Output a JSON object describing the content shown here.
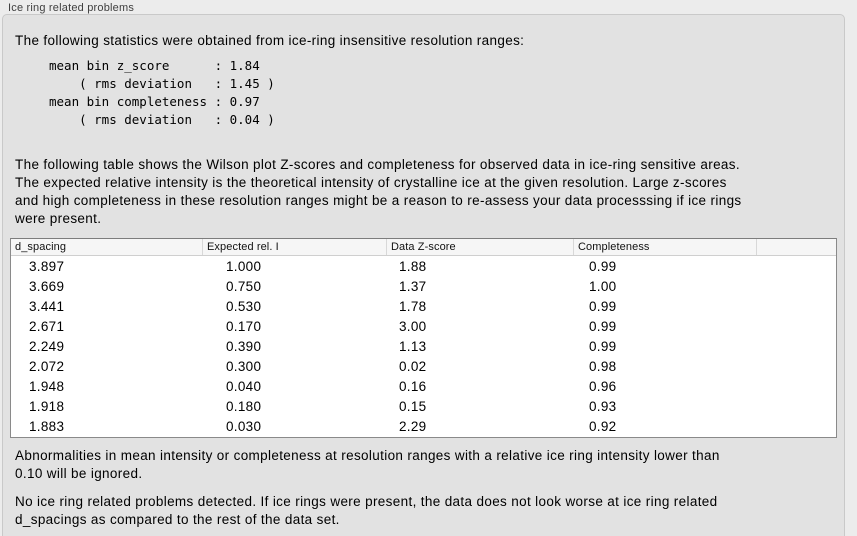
{
  "panel": {
    "title": "Ice ring related problems"
  },
  "intro": {
    "text": "The following statistics were obtained from ice-ring insensitive resolution ranges:"
  },
  "stats": {
    "block": "mean bin z_score      : 1.84\n    ( rms deviation   : 1.45 )\nmean bin completeness : 0.97\n    ( rms deviation   : 0.04 )"
  },
  "description": {
    "lines": [
      "The following table shows the Wilson plot Z-scores and completeness for observed data in ice-ring sensitive areas.",
      "The expected relative intensity is the theoretical intensity of crystalline ice at the given resolution. Large z-scores",
      "and high completeness in these resolution ranges might be a reason to re-assess your data processsing if ice rings",
      "were present."
    ]
  },
  "table": {
    "headers": [
      "d_spacing",
      "Expected rel. I",
      "Data Z-score",
      "Completeness"
    ],
    "rows": [
      [
        "3.897",
        "1.000",
        "1.88",
        "0.99"
      ],
      [
        "3.669",
        "0.750",
        "1.37",
        "1.00"
      ],
      [
        "3.441",
        "0.530",
        "1.78",
        "0.99"
      ],
      [
        "2.671",
        "0.170",
        "3.00",
        "0.99"
      ],
      [
        "2.249",
        "0.390",
        "1.13",
        "0.99"
      ],
      [
        "2.072",
        "0.300",
        "0.02",
        "0.98"
      ],
      [
        "1.948",
        "0.040",
        "0.16",
        "0.96"
      ],
      [
        "1.918",
        "0.180",
        "0.15",
        "0.93"
      ],
      [
        "1.883",
        "0.030",
        "2.29",
        "0.92"
      ]
    ]
  },
  "note": {
    "lines": [
      "Abnormalities in mean intensity or completeness at resolution ranges with a relative ice ring intensity lower than",
      "0.10 will be ignored."
    ]
  },
  "conclusion": {
    "lines": [
      "No ice ring related problems detected. If ice rings were present, the data does not look worse at ice ring related",
      "d_spacings as compared to the rest of the data set."
    ]
  },
  "colors": {
    "outer_background": "#ececec",
    "panel_background": "#e2e2e2",
    "table_border": "#8a8a8a",
    "table_header_background": "#f6f6f6"
  }
}
